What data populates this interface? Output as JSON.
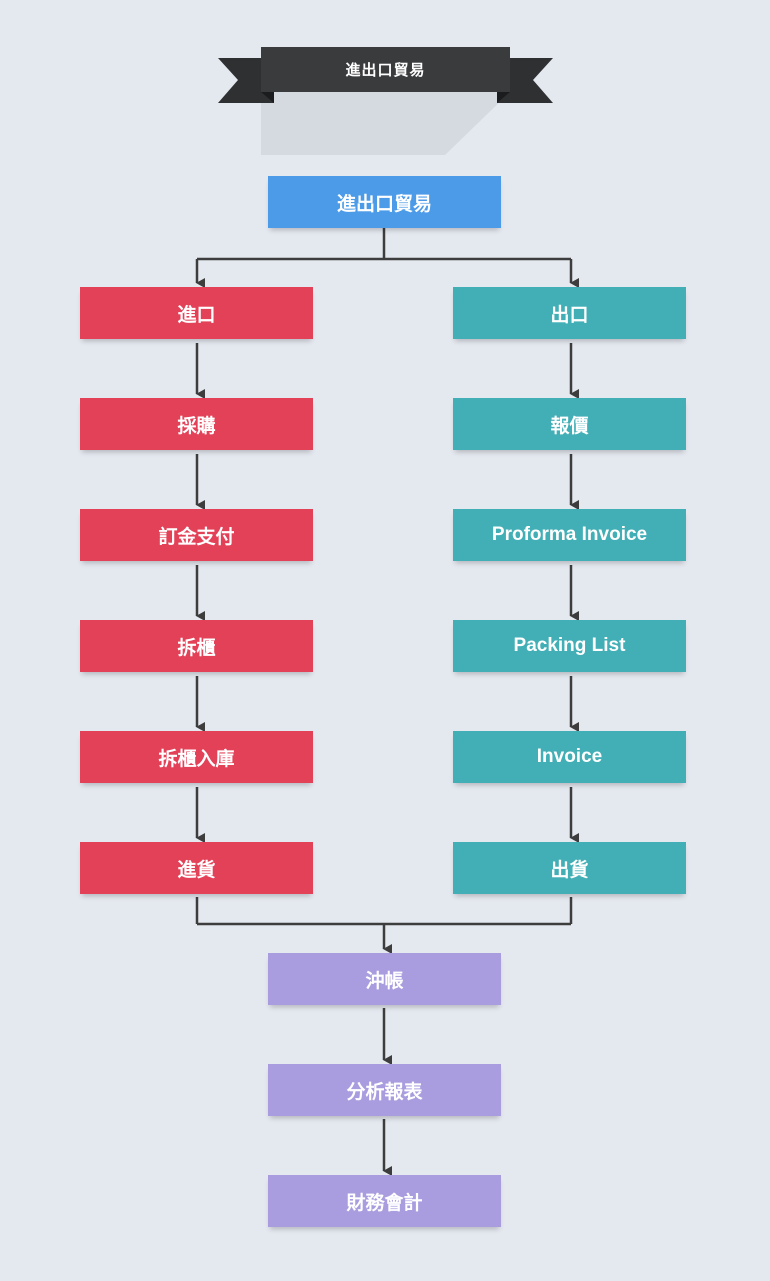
{
  "banner": {
    "title": "進出口貿易"
  },
  "root": {
    "label": "進出口貿易"
  },
  "import_branch": [
    "進口",
    "採購",
    "訂金支付",
    "拆櫃",
    "拆櫃入庫",
    "進貨"
  ],
  "export_branch": [
    "出口",
    "報價",
    "Proforma Invoice",
    "Packing List",
    "Invoice",
    "出貨"
  ],
  "finance_steps": [
    "沖帳",
    "分析報表",
    "財務會計"
  ],
  "colors": {
    "background": "#e4e8ef",
    "banner": "#3a3b3d",
    "root": "#4b9be8",
    "import": "#e34158",
    "export": "#42afb6",
    "finance": "#a99ddf",
    "connector": "#3d3d3d"
  }
}
